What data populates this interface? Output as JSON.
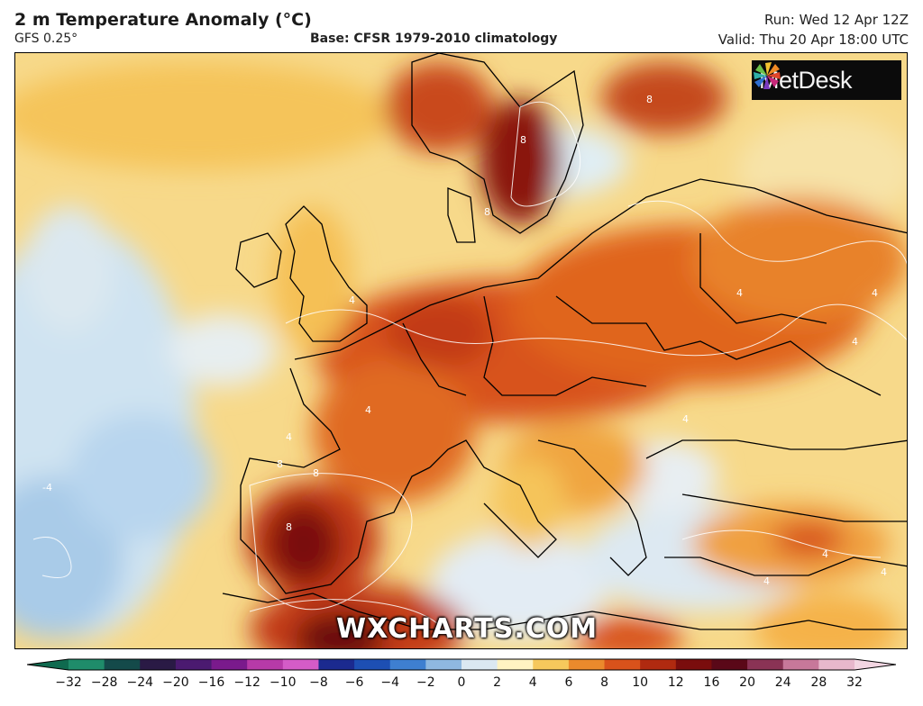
{
  "header": {
    "title": "2 m Temperature Anomaly (°C)",
    "model": "GFS 0.25°",
    "base": "Base: CFSR 1979-2010 climatology",
    "run": "Run: Wed 12 Apr 12Z",
    "valid": "Valid: Thu 20 Apr 18:00 UTC"
  },
  "logo": {
    "text": "MetDesk",
    "icon": "metdesk-pinwheel-icon"
  },
  "watermark": "WXCHARTS.COM",
  "colorbar": {
    "ticks": [
      "−32",
      "−28",
      "−24",
      "−20",
      "−16",
      "−12",
      "−10",
      "−8",
      "−6",
      "−4",
      "−2",
      "0",
      "2",
      "4",
      "6",
      "8",
      "10",
      "12",
      "16",
      "20",
      "24",
      "28",
      "32"
    ],
    "colors": [
      "#1f8c6a",
      "#144a4a",
      "#2a1a45",
      "#4b1a70",
      "#7a1a8c",
      "#b73aa8",
      "#d45cc7",
      "#1b2a8f",
      "#1d4fb3",
      "#3e7fd0",
      "#8fb8e0",
      "#dbe8f2",
      "#fff3c2",
      "#f6c85c",
      "#eb8a2c",
      "#d8521b",
      "#b02a10",
      "#7a0d0d",
      "#5a0818",
      "#8a3355",
      "#c7789a",
      "#e8b8cc"
    ],
    "arrow_left_color": "#0f6a4f",
    "arrow_right_color": "#f3d6e2"
  },
  "map": {
    "contour_labels": [
      "4",
      "4",
      "4",
      "4",
      "4",
      "4",
      "4",
      "4",
      "4",
      "4",
      "8",
      "8",
      "8",
      "8",
      "8",
      "8",
      "-4"
    ]
  },
  "colors": {
    "frame": "#000000",
    "sea_anomaly_cool": "#cfe3f1",
    "land_warm": "#e8762a"
  }
}
